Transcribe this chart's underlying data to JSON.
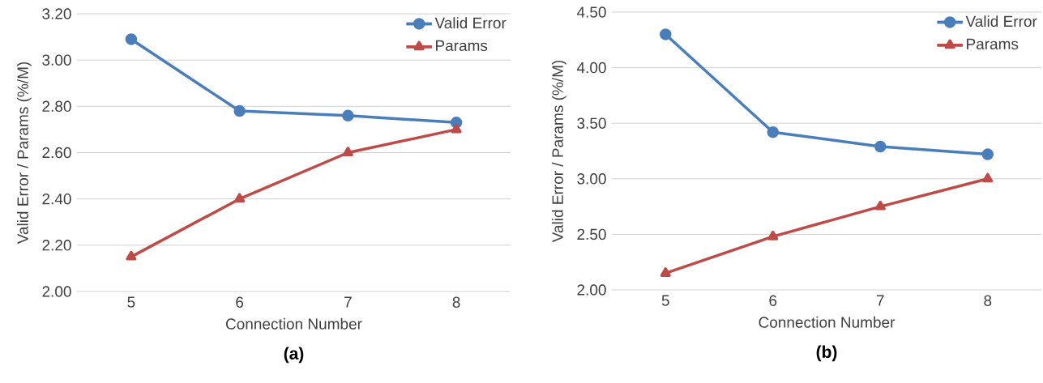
{
  "chart_data": [
    {
      "type": "line",
      "title": "(a)",
      "xlabel": "Connection Number",
      "ylabel": "Valid Error / Params (%/M)",
      "categories": [
        "5",
        "6",
        "7",
        "8"
      ],
      "series": [
        {
          "name": "Valid Error",
          "color": "#4a7ebb",
          "marker": "circle",
          "values": [
            3.09,
            2.78,
            2.76,
            2.73
          ]
        },
        {
          "name": "Params",
          "color": "#be4b48",
          "marker": "triangle",
          "values": [
            2.15,
            2.4,
            2.6,
            2.7
          ]
        }
      ],
      "ylim": [
        2.0,
        3.2
      ],
      "yticks": [
        {
          "value": 2.0,
          "label": "2.00"
        },
        {
          "value": 2.2,
          "label": "2.20"
        },
        {
          "value": 2.4,
          "label": "2.40"
        },
        {
          "value": 2.6,
          "label": "2.60"
        },
        {
          "value": 2.8,
          "label": "2.80"
        },
        {
          "value": 3.0,
          "label": "3.00"
        },
        {
          "value": 3.2,
          "label": "3.20"
        }
      ],
      "grid": "y",
      "legend": "top right"
    },
    {
      "type": "line",
      "title": "(b)",
      "xlabel": "Connection Number",
      "ylabel": "Valid Error / Params (%/M)",
      "categories": [
        "5",
        "6",
        "7",
        "8"
      ],
      "series": [
        {
          "name": "Valid Error",
          "color": "#4a7ebb",
          "marker": "circle",
          "values": [
            4.3,
            3.42,
            3.29,
            3.22
          ]
        },
        {
          "name": "Params",
          "color": "#be4b48",
          "marker": "triangle",
          "values": [
            2.15,
            2.48,
            2.75,
            3.0
          ]
        }
      ],
      "ylim": [
        2.0,
        4.5
      ],
      "yticks": [
        {
          "value": 2.0,
          "label": "2.00"
        },
        {
          "value": 2.5,
          "label": "2.50"
        },
        {
          "value": 3.0,
          "label": "3.00"
        },
        {
          "value": 3.5,
          "label": "3.50"
        },
        {
          "value": 4.0,
          "label": "4.00"
        },
        {
          "value": 4.5,
          "label": "4.50"
        }
      ],
      "grid": "y",
      "legend": "top right"
    }
  ]
}
